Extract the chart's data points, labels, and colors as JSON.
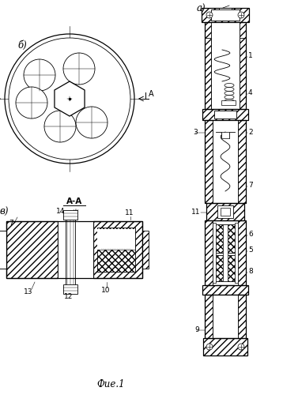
{
  "fig_label": "Фие.1",
  "bg_color": "#ffffff",
  "line_color": "#000000",
  "b_label": "б)",
  "v_label": "в)",
  "a_label": "а)",
  "section_label": "A-A",
  "arrow_label": "A"
}
